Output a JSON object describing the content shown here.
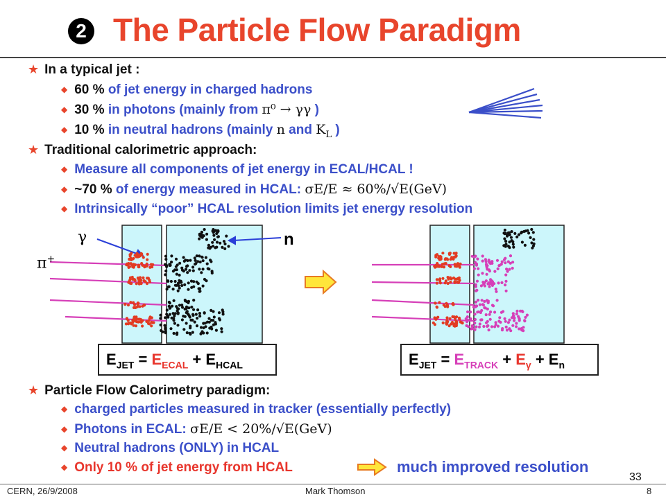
{
  "header": {
    "number": "2",
    "title": "The Particle Flow Paradigm"
  },
  "section1": {
    "heading": "In a typical jet :",
    "item1": {
      "bold_a": "60 %",
      "text": " of jet energy in charged hadrons"
    },
    "item2": {
      "bold_a": "30 %",
      "text": " in photons  (mainly from ",
      "math": "π⁰ → γγ",
      "close": "  )"
    },
    "item3": {
      "bold_a": "10 %",
      "text": " in neutral hadrons (mainly ",
      "math_a": "n",
      "and": "  and ",
      "math_b": "K",
      "math_b_sub": "L",
      "close": "  )"
    }
  },
  "section2": {
    "heading": "Traditional calorimetric approach:",
    "item1": "Measure all components of jet energy in ECAL/HCAL !",
    "item2": {
      "bold_a": "~70 %",
      "text": " of energy measured in HCAL:  ",
      "math": "σE/E ≈ 60%/√E(GeV)"
    },
    "item3": "Intrinsically “poor” HCAL resolution limits jet energy resolution"
  },
  "diagram": {
    "gamma_label": "γ",
    "n_label": "n",
    "pi_label": "π",
    "pi_sup": "+",
    "left_eq": {
      "E": "E",
      "jet": "JET",
      "eq": " = ",
      "E2": "E",
      "ecal": "ECAL",
      "plus": " + ",
      "E3": "E",
      "hcal": "HCAL"
    },
    "right_eq": {
      "E": "E",
      "jet": "JET",
      "eq": " = ",
      "E2": "E",
      "track": "TRACK",
      "plus1": " + ",
      "E3": "E",
      "gamma": "γ",
      "plus2": " + ",
      "E4": "E",
      "n": "n"
    }
  },
  "section3": {
    "heading": "Particle Flow Calorimetry paradigm:",
    "item1": "charged particles measured in tracker  (essentially perfectly)",
    "item2": {
      "text": "Photons in ECAL:  ",
      "math": "σE/E < 20%/√E(GeV)"
    },
    "item3": "Neutral hadrons (ONLY) in HCAL",
    "item4": {
      "red": "Only 10 % of jet energy from HCAL",
      "blue": "much improved resolution"
    }
  },
  "footer": {
    "left": "CERN, 26/9/2008",
    "center": "Mark Thomson",
    "page": "8"
  },
  "slide_number": "33",
  "colors": {
    "title_red": "#e8452c",
    "blue_text": "#3b4fc9",
    "calo_fill": "#ccf6fb",
    "track_magenta": "#d63fb8"
  }
}
